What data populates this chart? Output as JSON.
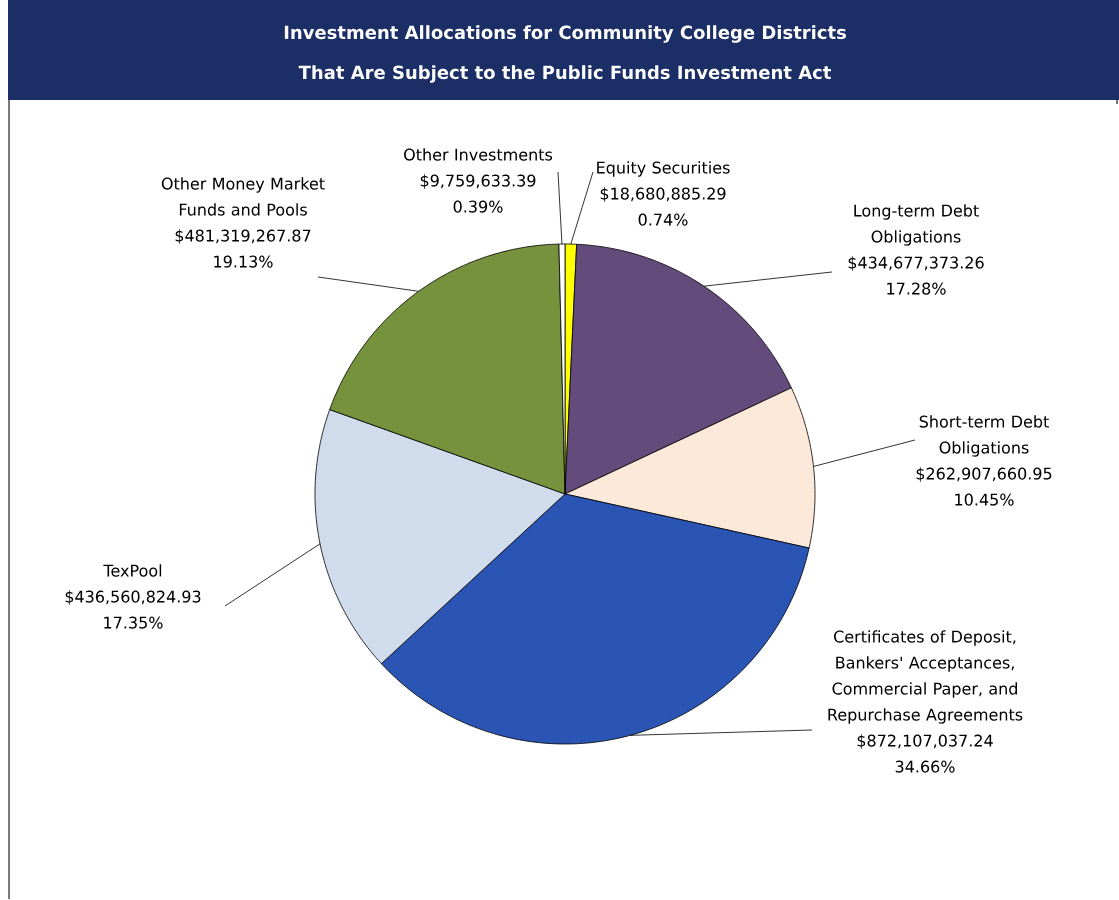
{
  "chart_data": {
    "type": "pie",
    "title": "Investment Allocations for Community College Districts",
    "subtitle": "That Are Subject to the Public Funds Investment Act",
    "categories": [
      "Equity Securities",
      "Long-term Debt Obligations",
      "Short-term Debt Obligations",
      "Certificates of Deposit, Bankers' Acceptances, Commercial Paper, and Repurchase Agreements",
      "TexPool",
      "Other Money Market Funds and Pools",
      "Other Investments"
    ],
    "values": [
      18680885.29,
      434677373.26,
      262907660.95,
      872107037.24,
      436560824.93,
      481319267.87,
      9759633.39
    ],
    "value_labels": [
      "$18,680,885.29",
      "$434,677,373.26",
      "$262,907,660.95",
      "$872,107,037.24",
      "$436,560,824.93",
      "$481,319,267.87",
      "$9,759,633.39"
    ],
    "annotations": [
      "0.74%",
      "17.28%",
      "10.45%",
      "34.66%",
      "17.35%",
      "19.13%",
      "0.39%"
    ],
    "colors": [
      "#ffff00",
      "#634c7c",
      "#fde9d9",
      "#2b55b5",
      "#d0dcec",
      "#76923c",
      "#ffffff"
    ]
  }
}
